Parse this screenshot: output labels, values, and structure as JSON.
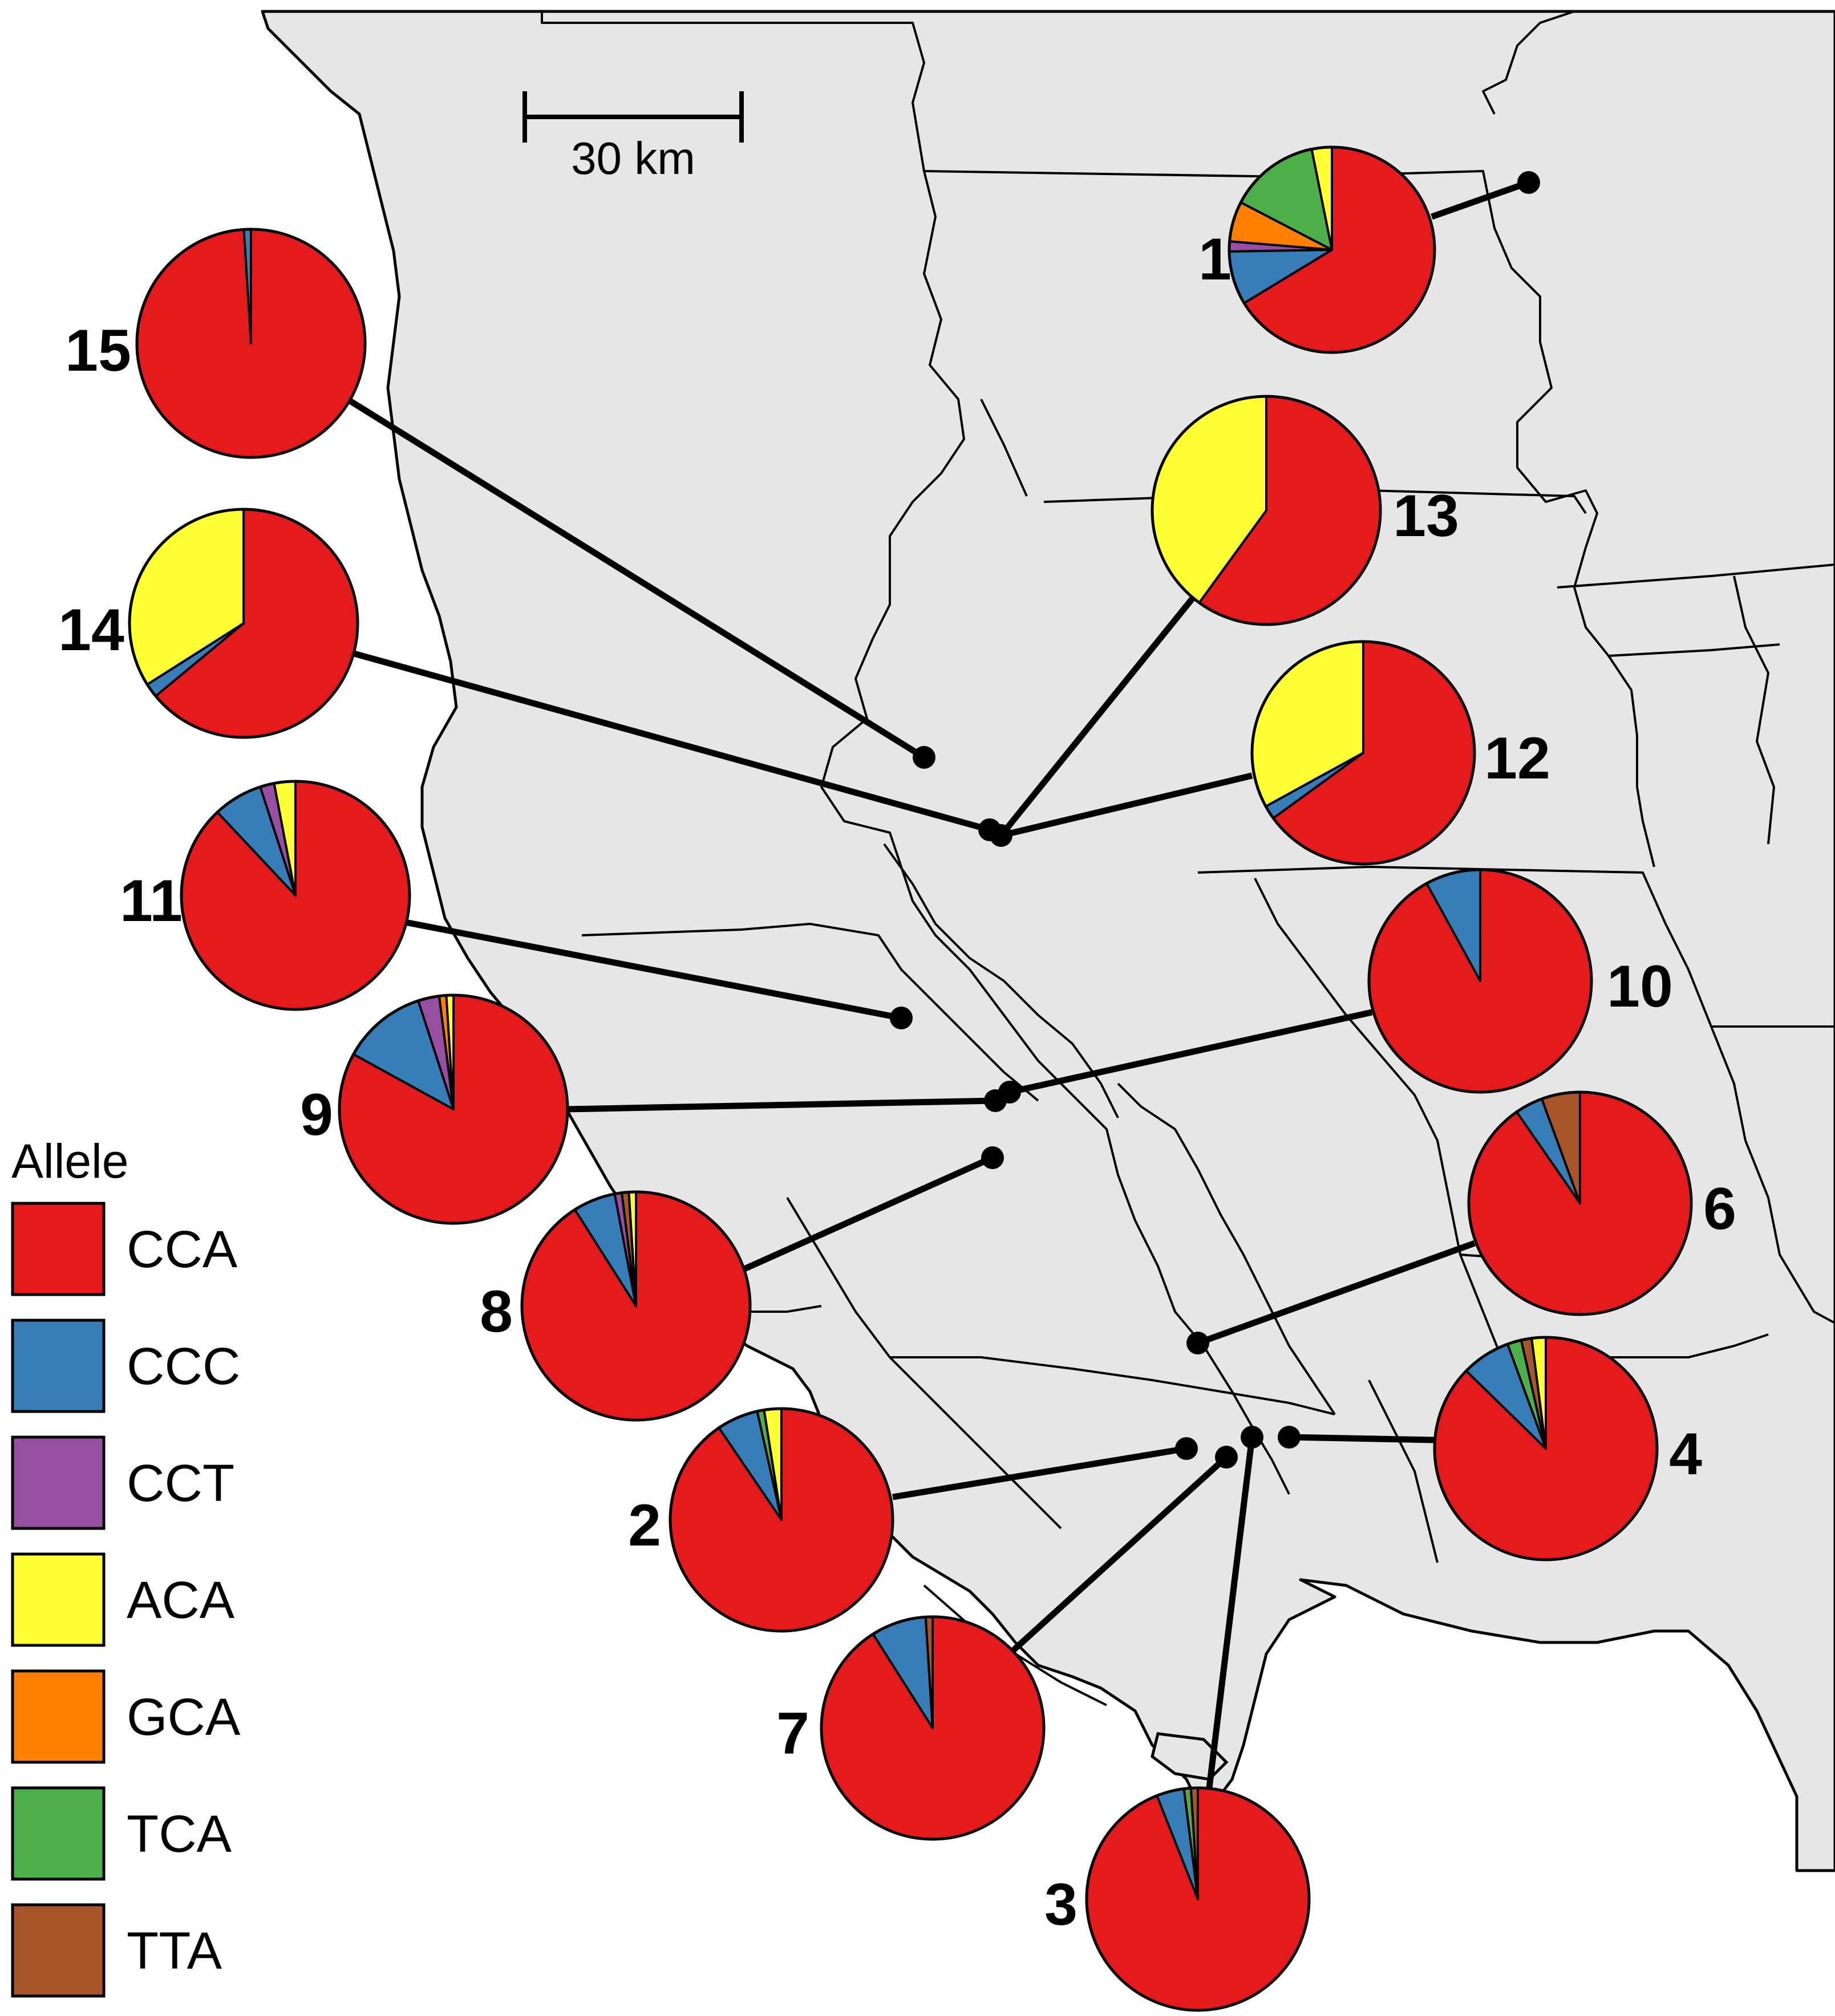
{
  "scale_bar": {
    "label": "30 km"
  },
  "legend": {
    "title": "Allele",
    "items": [
      {
        "allele": "CCA",
        "color": "#e41a1c"
      },
      {
        "allele": "CCC",
        "color": "#377eb8"
      },
      {
        "allele": "CCT",
        "color": "#984ea3"
      },
      {
        "allele": "ACA",
        "color": "#ffff33"
      },
      {
        "allele": "GCA",
        "color": "#ff7f00"
      },
      {
        "allele": "TCA",
        "color": "#4daf4a"
      },
      {
        "allele": "TTA",
        "color": "#a65628"
      }
    ]
  },
  "chart_data": {
    "type": "pie",
    "alleles": [
      "CCA",
      "CCC",
      "CCT",
      "ACA",
      "GCA",
      "TCA",
      "TTA"
    ],
    "sites": [
      {
        "id": "1",
        "fractions": {
          "CCA": 0.63,
          "CCC": 0.08,
          "CCT": 0.015,
          "ACA": 0.03,
          "GCA": 0.06,
          "TCA": 0.135,
          "TTA": 0
        }
      },
      {
        "id": "2",
        "fractions": {
          "CCA": 0.905,
          "CCC": 0.06,
          "CCT": 0,
          "ACA": 0.025,
          "GCA": 0,
          "TCA": 0.01,
          "TTA": 0
        }
      },
      {
        "id": "3",
        "fractions": {
          "CCA": 0.94,
          "CCC": 0.04,
          "CCT": 0,
          "ACA": 0,
          "GCA": 0,
          "TCA": 0.01,
          "TTA": 0.01
        }
      },
      {
        "id": "4",
        "fractions": {
          "CCA": 0.86,
          "CCC": 0.07,
          "CCT": 0,
          "ACA": 0.02,
          "GCA": 0,
          "TCA": 0.02,
          "TTA": 0.015
        }
      },
      {
        "id": "6",
        "fractions": {
          "CCA": 0.89,
          "CCC": 0.04,
          "CCT": 0,
          "ACA": 0,
          "GCA": 0,
          "TCA": 0,
          "TTA": 0.055
        }
      },
      {
        "id": "7",
        "fractions": {
          "CCA": 0.91,
          "CCC": 0.08,
          "CCT": 0,
          "ACA": 0,
          "GCA": 0,
          "TCA": 0,
          "TTA": 0.01
        }
      },
      {
        "id": "8",
        "fractions": {
          "CCA": 0.91,
          "CCC": 0.06,
          "CCT": 0.01,
          "ACA": 0.01,
          "GCA": 0,
          "TCA": 0,
          "TTA": 0.01
        }
      },
      {
        "id": "9",
        "fractions": {
          "CCA": 0.83,
          "CCC": 0.12,
          "CCT": 0.03,
          "ACA": 0.01,
          "GCA": 0.01,
          "TCA": 0,
          "TTA": 0
        }
      },
      {
        "id": "10",
        "fractions": {
          "CCA": 0.92,
          "CCC": 0.08,
          "CCT": 0,
          "ACA": 0,
          "GCA": 0,
          "TCA": 0,
          "TTA": 0
        }
      },
      {
        "id": "11",
        "fractions": {
          "CCA": 0.88,
          "CCC": 0.07,
          "CCT": 0.02,
          "ACA": 0.03,
          "GCA": 0,
          "TCA": 0,
          "TTA": 0
        }
      },
      {
        "id": "12",
        "fractions": {
          "CCA": 0.65,
          "CCC": 0.02,
          "CCT": 0,
          "ACA": 0.33,
          "GCA": 0,
          "TCA": 0,
          "TTA": 0
        }
      },
      {
        "id": "13",
        "fractions": {
          "CCA": 0.6,
          "CCC": 0,
          "CCT": 0,
          "ACA": 0.4,
          "GCA": 0,
          "TCA": 0,
          "TTA": 0
        }
      },
      {
        "id": "14",
        "fractions": {
          "CCA": 0.64,
          "CCC": 0.02,
          "CCT": 0,
          "ACA": 0.34,
          "GCA": 0,
          "TCA": 0,
          "TTA": 0
        }
      },
      {
        "id": "15",
        "fractions": {
          "CCA": 0.99,
          "CCC": 0.01,
          "CCT": 0,
          "ACA": 0,
          "GCA": 0,
          "TCA": 0,
          "TTA": 0
        }
      }
    ]
  }
}
